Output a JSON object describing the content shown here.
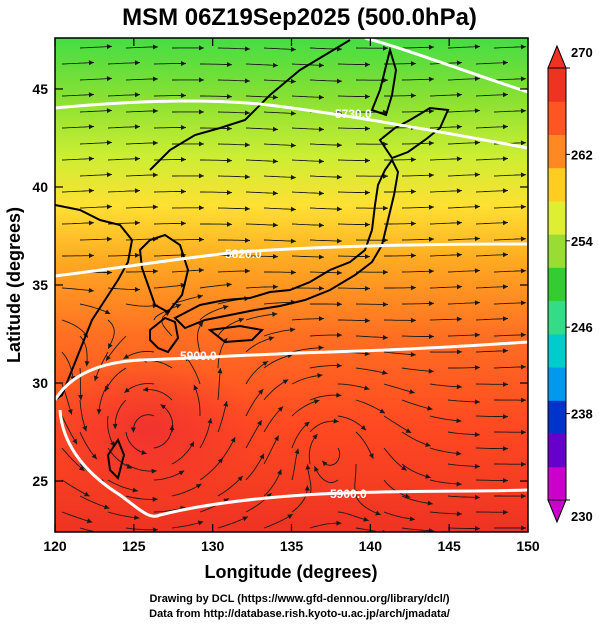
{
  "title": "MSM 06Z19Sep2025 (500.0hPa)",
  "x_axis": {
    "label": "Longitude (degrees)",
    "min": 120,
    "max": 150,
    "ticks": [
      "120",
      "125",
      "130",
      "135",
      "140",
      "145",
      "150"
    ]
  },
  "y_axis": {
    "label": "Latitude  (degrees)",
    "min": 22.4,
    "max": 47.6,
    "ticks": [
      "25",
      "30",
      "35",
      "40",
      "45"
    ]
  },
  "colorbar": {
    "min": 230,
    "max": 270,
    "labels": [
      "270",
      "262",
      "254",
      "246",
      "238",
      "230"
    ],
    "colors": [
      "#cc00cc",
      "#6600cc",
      "#0033cc",
      "#0099ee",
      "#00cccc",
      "#33dd88",
      "#33cc33",
      "#99dd33",
      "#ddee33",
      "#ffcc22",
      "#ff8822",
      "#ff5522",
      "#ee3322"
    ]
  },
  "contours": [
    {
      "label": "5730.0"
    },
    {
      "label": "5820.0"
    },
    {
      "label": "5900.0"
    },
    {
      "label": "5900.0"
    }
  ],
  "credits": {
    "line1": "Drawing by DCL (https://www.gfd-dennou.org/library/dcl/)",
    "line2": "Data from http://database.rish.kyoto-u.ac.jp/arch/jmadata/"
  }
}
